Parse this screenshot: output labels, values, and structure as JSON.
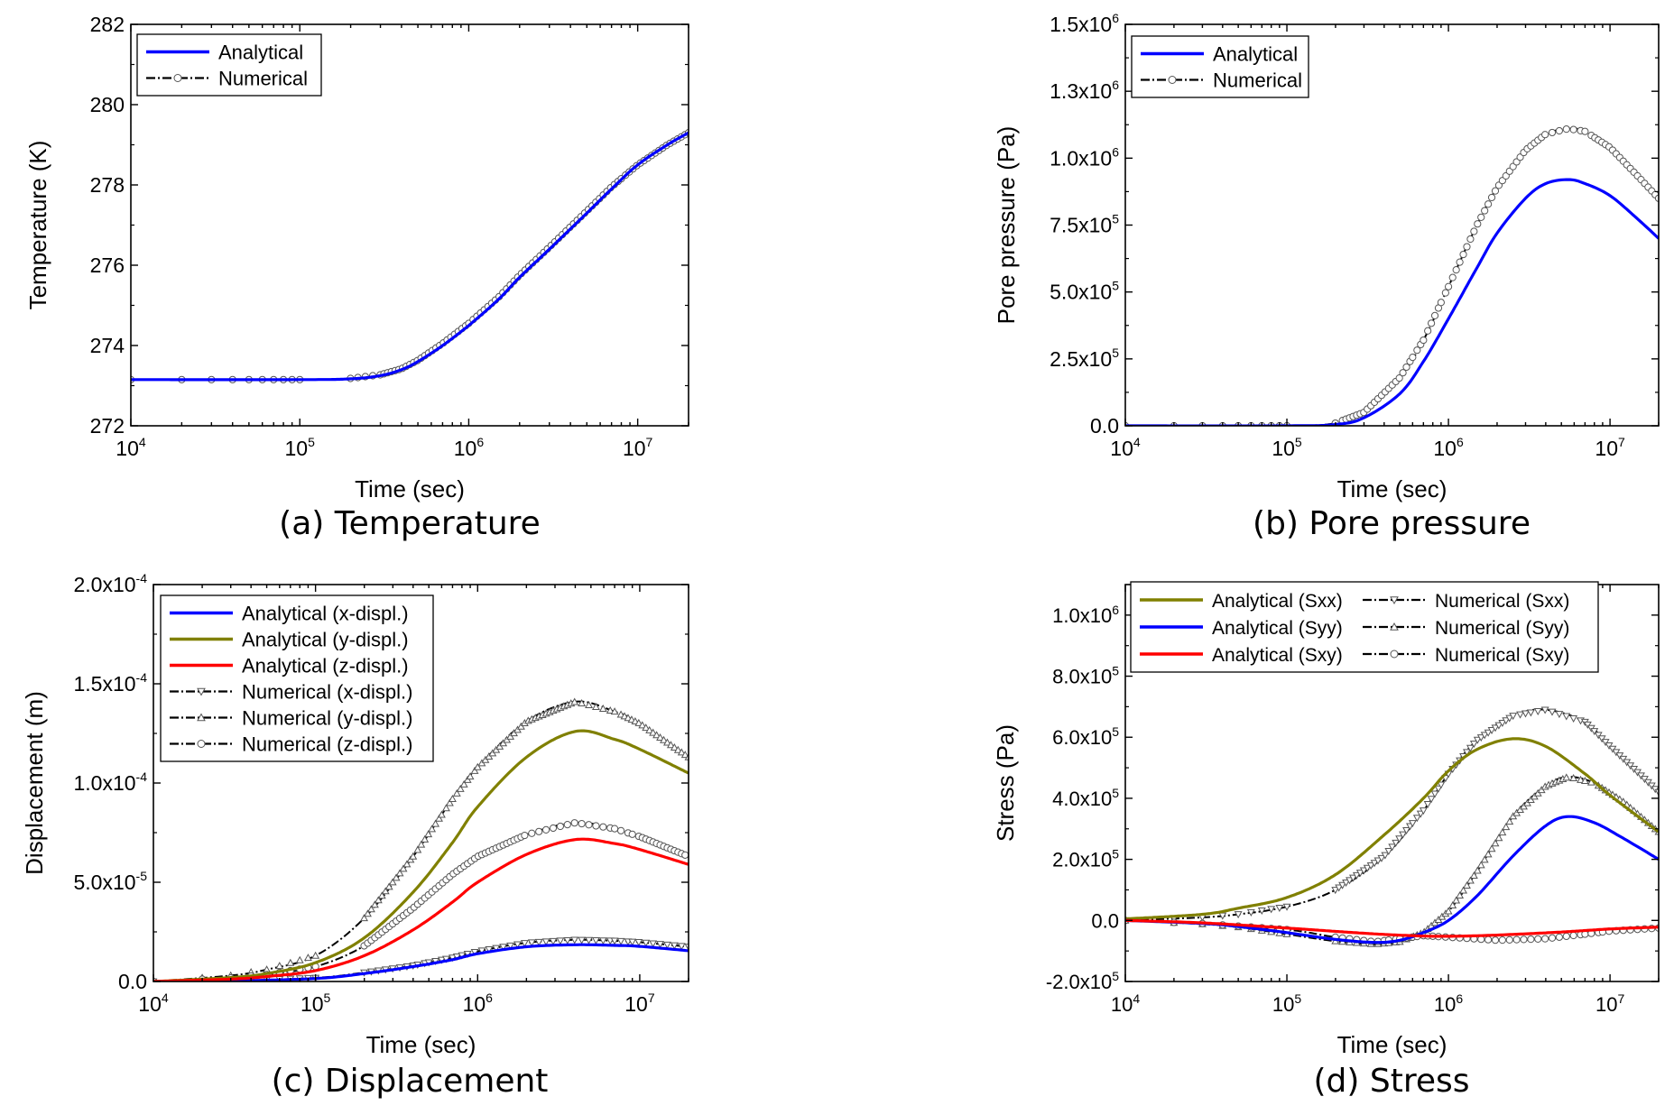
{
  "chart_data": [
    {
      "id": "a",
      "type": "line",
      "caption": "(a) Temperature",
      "xlabel": "Time (sec)",
      "ylabel": "Temperature (K)",
      "xscale": "log",
      "xlim": [
        10000,
        20000000
      ],
      "ylim": [
        272,
        282
      ],
      "xticks": [
        {
          "value": 10000,
          "base": "10",
          "exp": "4"
        },
        {
          "value": 100000,
          "base": "10",
          "exp": "5"
        },
        {
          "value": 1000000,
          "base": "10",
          "exp": "6"
        },
        {
          "value": 10000000,
          "base": "10",
          "exp": "7"
        }
      ],
      "yticks": [
        {
          "value": 272,
          "mant": "272",
          "exp": ""
        },
        {
          "value": 274,
          "mant": "274",
          "exp": ""
        },
        {
          "value": 276,
          "mant": "276",
          "exp": ""
        },
        {
          "value": 278,
          "mant": "278",
          "exp": ""
        },
        {
          "value": 280,
          "mant": "280",
          "exp": ""
        },
        {
          "value": 282,
          "mant": "282",
          "exp": ""
        }
      ],
      "legend": {
        "position": "top-left",
        "columns": 1
      },
      "series": [
        {
          "name": "Analytical",
          "kind": "analytical",
          "color": "#0000ff",
          "x": [
            10000,
            100000,
            200000,
            300000,
            400000,
            500000,
            700000,
            1000000,
            1500000,
            2000000,
            3000000,
            5000000,
            7000000,
            10000000,
            15000000,
            20000000
          ],
          "y": [
            273.15,
            273.15,
            273.17,
            273.25,
            273.4,
            273.6,
            274.0,
            274.5,
            275.15,
            275.7,
            276.4,
            277.3,
            277.9,
            278.5,
            279.0,
            279.3
          ]
        },
        {
          "name": "Numerical",
          "kind": "numerical",
          "marker": "circle",
          "color": "#000000",
          "x": [
            10000,
            100000,
            200000,
            300000,
            400000,
            500000,
            700000,
            1000000,
            1500000,
            2000000,
            3000000,
            5000000,
            7000000,
            10000000,
            15000000,
            20000000
          ],
          "y": [
            273.15,
            273.15,
            273.18,
            273.27,
            273.42,
            273.63,
            274.05,
            274.55,
            275.2,
            275.75,
            276.45,
            277.35,
            277.95,
            278.5,
            279.0,
            279.3
          ]
        }
      ]
    },
    {
      "id": "b",
      "type": "line",
      "caption": "(b) Pore pressure",
      "xlabel": "Time (sec)",
      "ylabel": "Pore pressure (Pa)",
      "xscale": "log",
      "xlim": [
        10000,
        20000000
      ],
      "ylim": [
        0,
        1500000
      ],
      "xticks": [
        {
          "value": 10000,
          "base": "10",
          "exp": "4"
        },
        {
          "value": 100000,
          "base": "10",
          "exp": "5"
        },
        {
          "value": 1000000,
          "base": "10",
          "exp": "6"
        },
        {
          "value": 10000000,
          "base": "10",
          "exp": "7"
        }
      ],
      "yticks": [
        {
          "value": 0,
          "mant": "0.0",
          "exp": ""
        },
        {
          "value": 250000,
          "mant": "2.5x10",
          "exp": "5"
        },
        {
          "value": 500000,
          "mant": "5.0x10",
          "exp": "5"
        },
        {
          "value": 750000,
          "mant": "7.5x10",
          "exp": "5"
        },
        {
          "value": 1000000,
          "mant": "1.0x10",
          "exp": "6"
        },
        {
          "value": 1250000,
          "mant": "1.3x10",
          "exp": "6"
        },
        {
          "value": 1500000,
          "mant": "1.5x10",
          "exp": "6"
        }
      ],
      "legend": {
        "position": "top-left",
        "columns": 1
      },
      "series": [
        {
          "name": "Analytical",
          "kind": "analytical",
          "color": "#0000ff",
          "x": [
            10000,
            100000,
            200000,
            300000,
            500000,
            700000,
            1000000,
            1500000,
            2000000,
            3000000,
            4000000,
            5500000,
            7000000,
            10000000,
            15000000,
            20000000
          ],
          "y": [
            0,
            0,
            5000,
            30000,
            120000,
            240000,
            400000,
            590000,
            720000,
            850000,
            905000,
            920000,
            905000,
            860000,
            770000,
            700000
          ]
        },
        {
          "name": "Numerical",
          "kind": "numerical",
          "marker": "circle",
          "color": "#000000",
          "x": [
            10000,
            100000,
            200000,
            300000,
            500000,
            700000,
            1000000,
            1500000,
            2000000,
            3000000,
            4000000,
            5500000,
            7000000,
            10000000,
            15000000,
            20000000
          ],
          "y": [
            0,
            0,
            10000,
            50000,
            180000,
            320000,
            520000,
            750000,
            890000,
            1030000,
            1090000,
            1110000,
            1100000,
            1040000,
            930000,
            850000
          ]
        }
      ]
    },
    {
      "id": "c",
      "type": "line",
      "caption": "(c) Displacement",
      "xlabel": "Time (sec)",
      "ylabel": "Displacement (m)",
      "xscale": "log",
      "xlim": [
        10000,
        20000000
      ],
      "ylim": [
        0,
        0.0002
      ],
      "xticks": [
        {
          "value": 10000,
          "base": "10",
          "exp": "4"
        },
        {
          "value": 100000,
          "base": "10",
          "exp": "5"
        },
        {
          "value": 1000000,
          "base": "10",
          "exp": "6"
        },
        {
          "value": 10000000,
          "base": "10",
          "exp": "7"
        }
      ],
      "yticks": [
        {
          "value": 0,
          "mant": "0.0",
          "exp": ""
        },
        {
          "value": 5e-05,
          "mant": "5.0x10",
          "exp": "-5"
        },
        {
          "value": 0.0001,
          "mant": "1.0x10",
          "exp": "-4"
        },
        {
          "value": 0.00015,
          "mant": "1.5x10",
          "exp": "-4"
        },
        {
          "value": 0.0002,
          "mant": "2.0x10",
          "exp": "-4"
        }
      ],
      "legend": {
        "position": "top-left",
        "columns": 1
      },
      "series": [
        {
          "name": "Analytical (x-displ.)",
          "kind": "analytical",
          "color": "#0000ff",
          "x": [
            10000,
            30000,
            100000,
            200000,
            400000,
            700000,
            1000000,
            2000000,
            4000000,
            7000000,
            10000000,
            20000000
          ],
          "y": [
            0,
            3e-07,
            1.5e-06,
            4e-06,
            7.5e-06,
            1.1e-05,
            1.4e-05,
            1.75e-05,
            1.85e-05,
            1.82e-05,
            1.77e-05,
            1.55e-05
          ]
        },
        {
          "name": "Analytical (y-displ.)",
          "kind": "analytical",
          "color": "#808000",
          "x": [
            10000,
            30000,
            50000,
            100000,
            200000,
            400000,
            700000,
            1000000,
            2000000,
            4000000,
            7000000,
            10000000,
            20000000
          ],
          "y": [
            0,
            2e-06,
            4e-06,
            9.5e-06,
            2.2e-05,
            4.5e-05,
            7e-05,
            8.8e-05,
            0.000113,
            0.000126,
            0.000122,
            0.000117,
            0.000105
          ]
        },
        {
          "name": "Analytical (z-displ.)",
          "kind": "analytical",
          "color": "#ff0000",
          "x": [
            10000,
            30000,
            50000,
            100000,
            200000,
            400000,
            700000,
            1000000,
            2000000,
            4000000,
            7000000,
            10000000,
            20000000
          ],
          "y": [
            0,
            1.2e-06,
            2.5e-06,
            5.5e-06,
            1.3e-05,
            2.6e-05,
            4e-05,
            5e-05,
            6.4e-05,
            7.15e-05,
            6.95e-05,
            6.65e-05,
            5.9e-05
          ]
        },
        {
          "name": "Numerical (x-displ.)",
          "kind": "numerical",
          "marker": "triangle-down",
          "color": "#000000",
          "x": [
            10000,
            30000,
            100000,
            200000,
            400000,
            700000,
            1000000,
            2000000,
            4000000,
            7000000,
            10000000,
            20000000
          ],
          "y": [
            0,
            4e-07,
            1.8e-06,
            4.5e-06,
            8e-06,
            1.2e-05,
            1.52e-05,
            1.95e-05,
            2.1e-05,
            2.05e-05,
            1.98e-05,
            1.75e-05
          ]
        },
        {
          "name": "Numerical (y-displ.)",
          "kind": "numerical",
          "marker": "triangle-up",
          "color": "#000000",
          "x": [
            10000,
            30000,
            50000,
            100000,
            200000,
            400000,
            700000,
            1000000,
            2000000,
            4000000,
            7000000,
            10000000,
            20000000
          ],
          "y": [
            0,
            3e-06,
            6e-06,
            1.3e-05,
            3.2e-05,
            6.3e-05,
            9.2e-05,
            0.000108,
            0.000131,
            0.000141,
            0.000136,
            0.00013,
            0.000113
          ]
        },
        {
          "name": "Numerical (z-displ.)",
          "kind": "numerical",
          "marker": "circle",
          "color": "#000000",
          "x": [
            10000,
            30000,
            50000,
            100000,
            200000,
            400000,
            700000,
            1000000,
            2000000,
            4000000,
            7000000,
            10000000,
            20000000
          ],
          "y": [
            0,
            1.8e-06,
            3.5e-06,
            7.5e-06,
            1.8e-05,
            3.7e-05,
            5.4e-05,
            6.3e-05,
            7.4e-05,
            8e-05,
            7.7e-05,
            7.3e-05,
            6.3e-05
          ]
        }
      ]
    },
    {
      "id": "d",
      "type": "line",
      "caption": "(d) Stress",
      "xlabel": "Time (sec)",
      "ylabel": "Stress (Pa)",
      "xscale": "log",
      "xlim": [
        10000,
        20000000
      ],
      "ylim": [
        -200000,
        1100000
      ],
      "xticks": [
        {
          "value": 10000,
          "base": "10",
          "exp": "4"
        },
        {
          "value": 100000,
          "base": "10",
          "exp": "5"
        },
        {
          "value": 1000000,
          "base": "10",
          "exp": "6"
        },
        {
          "value": 10000000,
          "base": "10",
          "exp": "7"
        }
      ],
      "yticks": [
        {
          "value": -200000,
          "mant": "-2.0x10",
          "exp": "5"
        },
        {
          "value": 0,
          "mant": "0.0",
          "exp": ""
        },
        {
          "value": 200000,
          "mant": "2.0x10",
          "exp": "5"
        },
        {
          "value": 400000,
          "mant": "4.0x10",
          "exp": "5"
        },
        {
          "value": 600000,
          "mant": "6.0x10",
          "exp": "5"
        },
        {
          "value": 800000,
          "mant": "8.0x10",
          "exp": "5"
        },
        {
          "value": 1000000,
          "mant": "1.0x10",
          "exp": "6"
        }
      ],
      "legend": {
        "position": "top-left",
        "columns": 2
      },
      "series": [
        {
          "name": "Analytical (Sxx)",
          "kind": "analytical",
          "color": "#808000",
          "x": [
            10000,
            30000,
            50000,
            100000,
            200000,
            400000,
            700000,
            1000000,
            1500000,
            2500000,
            4000000,
            7000000,
            10000000,
            20000000
          ],
          "y": [
            5000,
            20000,
            40000,
            75000,
            150000,
            280000,
            400000,
            490000,
            560000,
            595000,
            570000,
            480000,
            410000,
            290000
          ]
        },
        {
          "name": "Analytical (Syy)",
          "kind": "analytical",
          "color": "#0000ff",
          "x": [
            10000,
            30000,
            50000,
            100000,
            200000,
            350000,
            500000,
            700000,
            1000000,
            1500000,
            2500000,
            4000000,
            5500000,
            8000000,
            12000000,
            20000000
          ],
          "y": [
            0,
            -10000,
            -20000,
            -40000,
            -62000,
            -72000,
            -65000,
            -40000,
            0,
            80000,
            210000,
            310000,
            340000,
            320000,
            270000,
            200000
          ]
        },
        {
          "name": "Analytical (Sxy)",
          "kind": "analytical",
          "color": "#ff0000",
          "x": [
            10000,
            30000,
            100000,
            300000,
            600000,
            1000000,
            2000000,
            5000000,
            10000000,
            20000000
          ],
          "y": [
            0,
            -8000,
            -25000,
            -42000,
            -50000,
            -52000,
            -48000,
            -38000,
            -28000,
            -22000
          ]
        },
        {
          "name": "Numerical (Sxx)",
          "kind": "numerical",
          "marker": "triangle-down",
          "color": "#000000",
          "x": [
            10000,
            30000,
            50000,
            100000,
            200000,
            400000,
            700000,
            1000000,
            1500000,
            2500000,
            4000000,
            7000000,
            10000000,
            20000000
          ],
          "y": [
            0,
            10000,
            20000,
            45000,
            100000,
            210000,
            360000,
            480000,
            590000,
            670000,
            690000,
            650000,
            570000,
            420000
          ]
        },
        {
          "name": "Numerical (Syy)",
          "kind": "numerical",
          "marker": "triangle-up",
          "color": "#000000",
          "x": [
            10000,
            30000,
            50000,
            100000,
            200000,
            350000,
            500000,
            700000,
            1000000,
            1500000,
            2500000,
            4000000,
            5500000,
            8000000,
            12000000,
            20000000
          ],
          "y": [
            0,
            -12000,
            -22000,
            -45000,
            -68000,
            -78000,
            -70000,
            -40000,
            30000,
            160000,
            340000,
            440000,
            470000,
            450000,
            390000,
            290000
          ]
        },
        {
          "name": "Numerical (Sxy)",
          "kind": "numerical",
          "marker": "circle",
          "color": "#000000",
          "x": [
            10000,
            30000,
            100000,
            200000,
            350000,
            500000,
            700000,
            1000000,
            2000000,
            4000000,
            7000000,
            10000000,
            20000000
          ],
          "y": [
            0,
            -10000,
            -30000,
            -55000,
            -70000,
            -60000,
            -50000,
            -55000,
            -65000,
            -60000,
            -45000,
            -35000,
            -25000
          ]
        }
      ]
    }
  ]
}
